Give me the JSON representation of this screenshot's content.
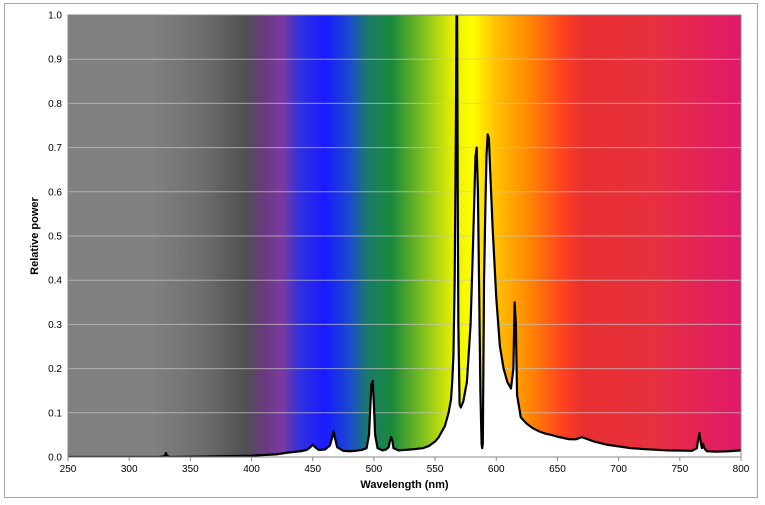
{
  "chart_data": {
    "type": "area",
    "xlabel": "Wavelength (nm)",
    "ylabel": "Relative power",
    "xlim": [
      250,
      800
    ],
    "ylim": [
      0,
      1.0
    ],
    "x_ticks": [
      250,
      300,
      350,
      400,
      450,
      500,
      550,
      600,
      650,
      700,
      750,
      800
    ],
    "y_ticks": [
      0.0,
      0.1,
      0.2,
      0.3,
      0.4,
      0.5,
      0.6,
      0.7,
      0.8,
      0.9,
      1.0
    ],
    "grid": "horizontal",
    "background": "visible color spectrum",
    "colors": {
      "line": "#000000",
      "fill": "#ffffff",
      "grid": "#c8c8c8",
      "uv_gray": "#808080",
      "violet": "#7a3aa0",
      "blue": "#1a1aff",
      "green": "#1a8a3a",
      "yellow": "#ffff00",
      "orange": "#ff8c00",
      "red": "#e83030",
      "deep_red": "#e0186a"
    },
    "series": [
      {
        "points": [
          [
            250,
            0.0
          ],
          [
            300,
            0.0
          ],
          [
            325,
            0.0
          ],
          [
            329,
            0.002
          ],
          [
            330,
            0.009
          ],
          [
            331,
            0.003
          ],
          [
            333,
            0.0
          ],
          [
            360,
            0.001
          ],
          [
            380,
            0.002
          ],
          [
            400,
            0.003
          ],
          [
            420,
            0.006
          ],
          [
            430,
            0.01
          ],
          [
            440,
            0.013
          ],
          [
            445,
            0.016
          ],
          [
            448,
            0.022
          ],
          [
            450,
            0.028
          ],
          [
            452,
            0.022
          ],
          [
            455,
            0.016
          ],
          [
            460,
            0.017
          ],
          [
            464,
            0.026
          ],
          [
            466,
            0.045
          ],
          [
            467,
            0.058
          ],
          [
            468,
            0.045
          ],
          [
            470,
            0.022
          ],
          [
            475,
            0.014
          ],
          [
            480,
            0.013
          ],
          [
            485,
            0.014
          ],
          [
            490,
            0.016
          ],
          [
            494,
            0.02
          ],
          [
            496,
            0.05
          ],
          [
            497,
            0.11
          ],
          [
            498,
            0.165
          ],
          [
            499,
            0.172
          ],
          [
            500,
            0.12
          ],
          [
            501,
            0.05
          ],
          [
            503,
            0.02
          ],
          [
            507,
            0.015
          ],
          [
            510,
            0.017
          ],
          [
            512,
            0.022
          ],
          [
            513,
            0.035
          ],
          [
            514,
            0.045
          ],
          [
            515,
            0.038
          ],
          [
            516,
            0.02
          ],
          [
            520,
            0.015
          ],
          [
            530,
            0.017
          ],
          [
            540,
            0.02
          ],
          [
            545,
            0.025
          ],
          [
            550,
            0.035
          ],
          [
            553,
            0.045
          ],
          [
            555,
            0.055
          ],
          [
            558,
            0.07
          ],
          [
            561,
            0.1
          ],
          [
            563,
            0.13
          ],
          [
            564,
            0.17
          ],
          [
            565,
            0.23
          ],
          [
            566,
            0.4
          ],
          [
            567,
            0.75
          ],
          [
            567.5,
            1.0
          ],
          [
            568,
            1.0
          ],
          [
            568.5,
            0.6
          ],
          [
            569,
            0.3
          ],
          [
            570,
            0.12
          ],
          [
            571,
            0.112
          ],
          [
            573,
            0.125
          ],
          [
            576,
            0.17
          ],
          [
            579,
            0.3
          ],
          [
            581,
            0.48
          ],
          [
            583,
            0.68
          ],
          [
            584,
            0.7
          ],
          [
            585,
            0.6
          ],
          [
            586,
            0.38
          ],
          [
            587,
            0.15
          ],
          [
            588,
            0.03
          ],
          [
            588.5,
            0.02
          ],
          [
            589,
            0.03
          ],
          [
            590,
            0.4
          ],
          [
            591,
            0.55
          ],
          [
            592,
            0.68
          ],
          [
            593,
            0.73
          ],
          [
            594,
            0.72
          ],
          [
            595,
            0.65
          ],
          [
            597,
            0.52
          ],
          [
            600,
            0.36
          ],
          [
            603,
            0.25
          ],
          [
            606,
            0.2
          ],
          [
            609,
            0.17
          ],
          [
            612,
            0.155
          ],
          [
            614,
            0.2
          ],
          [
            615,
            0.35
          ],
          [
            616,
            0.3
          ],
          [
            617,
            0.14
          ],
          [
            620,
            0.09
          ],
          [
            625,
            0.075
          ],
          [
            630,
            0.065
          ],
          [
            635,
            0.058
          ],
          [
            640,
            0.053
          ],
          [
            645,
            0.05
          ],
          [
            650,
            0.046
          ],
          [
            655,
            0.043
          ],
          [
            660,
            0.04
          ],
          [
            665,
            0.04
          ],
          [
            670,
            0.045
          ],
          [
            675,
            0.04
          ],
          [
            680,
            0.035
          ],
          [
            690,
            0.028
          ],
          [
            700,
            0.024
          ],
          [
            710,
            0.02
          ],
          [
            720,
            0.018
          ],
          [
            740,
            0.015
          ],
          [
            760,
            0.014
          ],
          [
            764,
            0.02
          ],
          [
            765,
            0.04
          ],
          [
            766,
            0.054
          ],
          [
            767,
            0.035
          ],
          [
            768,
            0.02
          ],
          [
            769,
            0.03
          ],
          [
            770,
            0.02
          ],
          [
            772,
            0.013
          ],
          [
            780,
            0.012
          ],
          [
            790,
            0.013
          ],
          [
            800,
            0.015
          ]
        ]
      }
    ]
  }
}
